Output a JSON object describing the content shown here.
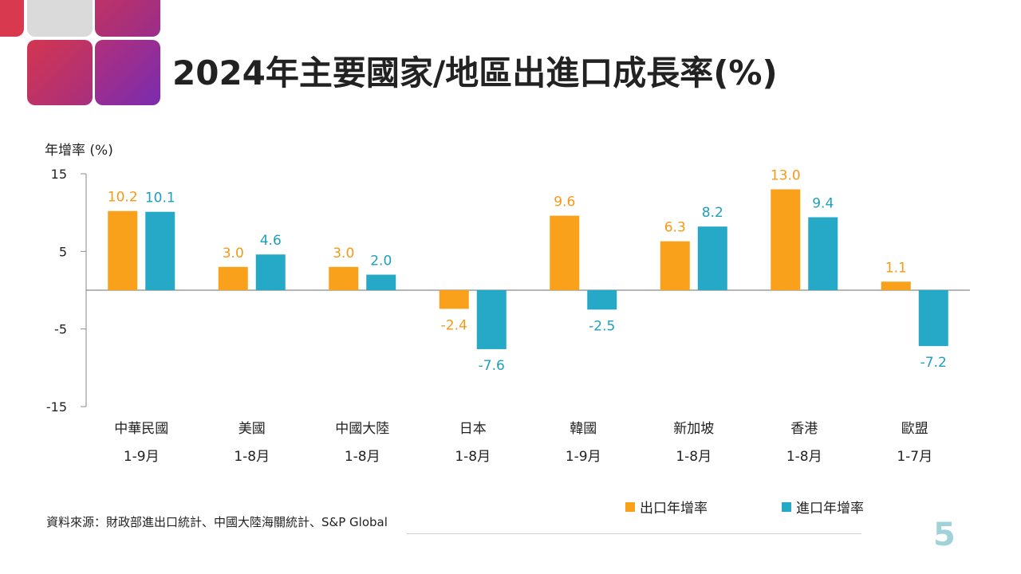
{
  "slide": {
    "title": "2024年主要國家/地區出進口成長率(%)",
    "source": "資料來源：財政部進出口統計、中國大陸海關統計、S&P Global",
    "page_number": "5"
  },
  "colors": {
    "export": "#F9A11B",
    "import": "#26A9C6",
    "label_export": "#F39A17",
    "label_import": "#1E9FBD",
    "page_number": "#9FD3D8"
  },
  "chart_data": {
    "type": "bar",
    "ylabel": "年增率 (%)",
    "ylim": [
      -15,
      15
    ],
    "yticks": [
      "15",
      "5",
      "-5",
      "-15"
    ],
    "ytick_values": [
      15,
      5,
      -5,
      -15
    ],
    "grid": false,
    "legend_position": "bottom-right",
    "categories": [
      "中華民國",
      "美國",
      "中國大陸",
      "日本",
      "韓國",
      "新加坡",
      "香港",
      "歐盟"
    ],
    "periods": [
      "1-9月",
      "1-8月",
      "1-8月",
      "1-8月",
      "1-9月",
      "1-8月",
      "1-8月",
      "1-7月"
    ],
    "series": [
      {
        "name": "出口年增率",
        "values": [
          10.2,
          3.0,
          3.0,
          -2.4,
          9.6,
          6.3,
          13.0,
          1.1
        ]
      },
      {
        "name": "進口年增率",
        "values": [
          10.1,
          4.6,
          2.0,
          -7.6,
          -2.5,
          8.2,
          9.4,
          -7.2
        ]
      }
    ]
  }
}
